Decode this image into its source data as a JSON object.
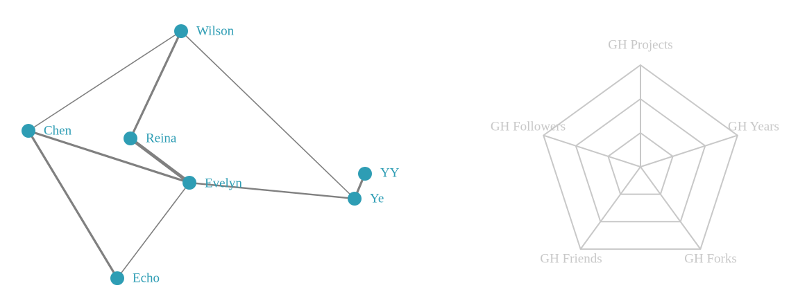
{
  "network": {
    "node_color": "#2e9db4",
    "label_color": "#2e9db4",
    "edge_color": "#808080",
    "nodes": [
      {
        "id": "wilson",
        "label": "Wilson"
      },
      {
        "id": "chen",
        "label": "Chen"
      },
      {
        "id": "reina",
        "label": "Reina"
      },
      {
        "id": "evelyn",
        "label": "Evelyn"
      },
      {
        "id": "yy",
        "label": "YY"
      },
      {
        "id": "ye",
        "label": "Ye"
      },
      {
        "id": "echo",
        "label": "Echo"
      }
    ],
    "edges": [
      {
        "source": "wilson",
        "target": "chen",
        "weight": 1
      },
      {
        "source": "wilson",
        "target": "reina",
        "weight": 2
      },
      {
        "source": "wilson",
        "target": "ye",
        "weight": 1
      },
      {
        "source": "chen",
        "target": "evelyn",
        "weight": 2
      },
      {
        "source": "chen",
        "target": "echo",
        "weight": 2
      },
      {
        "source": "reina",
        "target": "evelyn",
        "weight": 3
      },
      {
        "source": "evelyn",
        "target": "ye",
        "weight": 1.5
      },
      {
        "source": "evelyn",
        "target": "echo",
        "weight": 1
      },
      {
        "source": "yy",
        "target": "ye",
        "weight": 2
      }
    ]
  },
  "radar": {
    "grid_color": "#c8c8c8",
    "label_color": "#c8c8c8",
    "levels": 3,
    "axes": [
      {
        "id": "projects",
        "label": "GH Projects"
      },
      {
        "id": "years",
        "label": "GH Years"
      },
      {
        "id": "forks",
        "label": "GH Forks"
      },
      {
        "id": "friends",
        "label": "GH Friends"
      },
      {
        "id": "followers",
        "label": "GH Followers"
      }
    ]
  }
}
